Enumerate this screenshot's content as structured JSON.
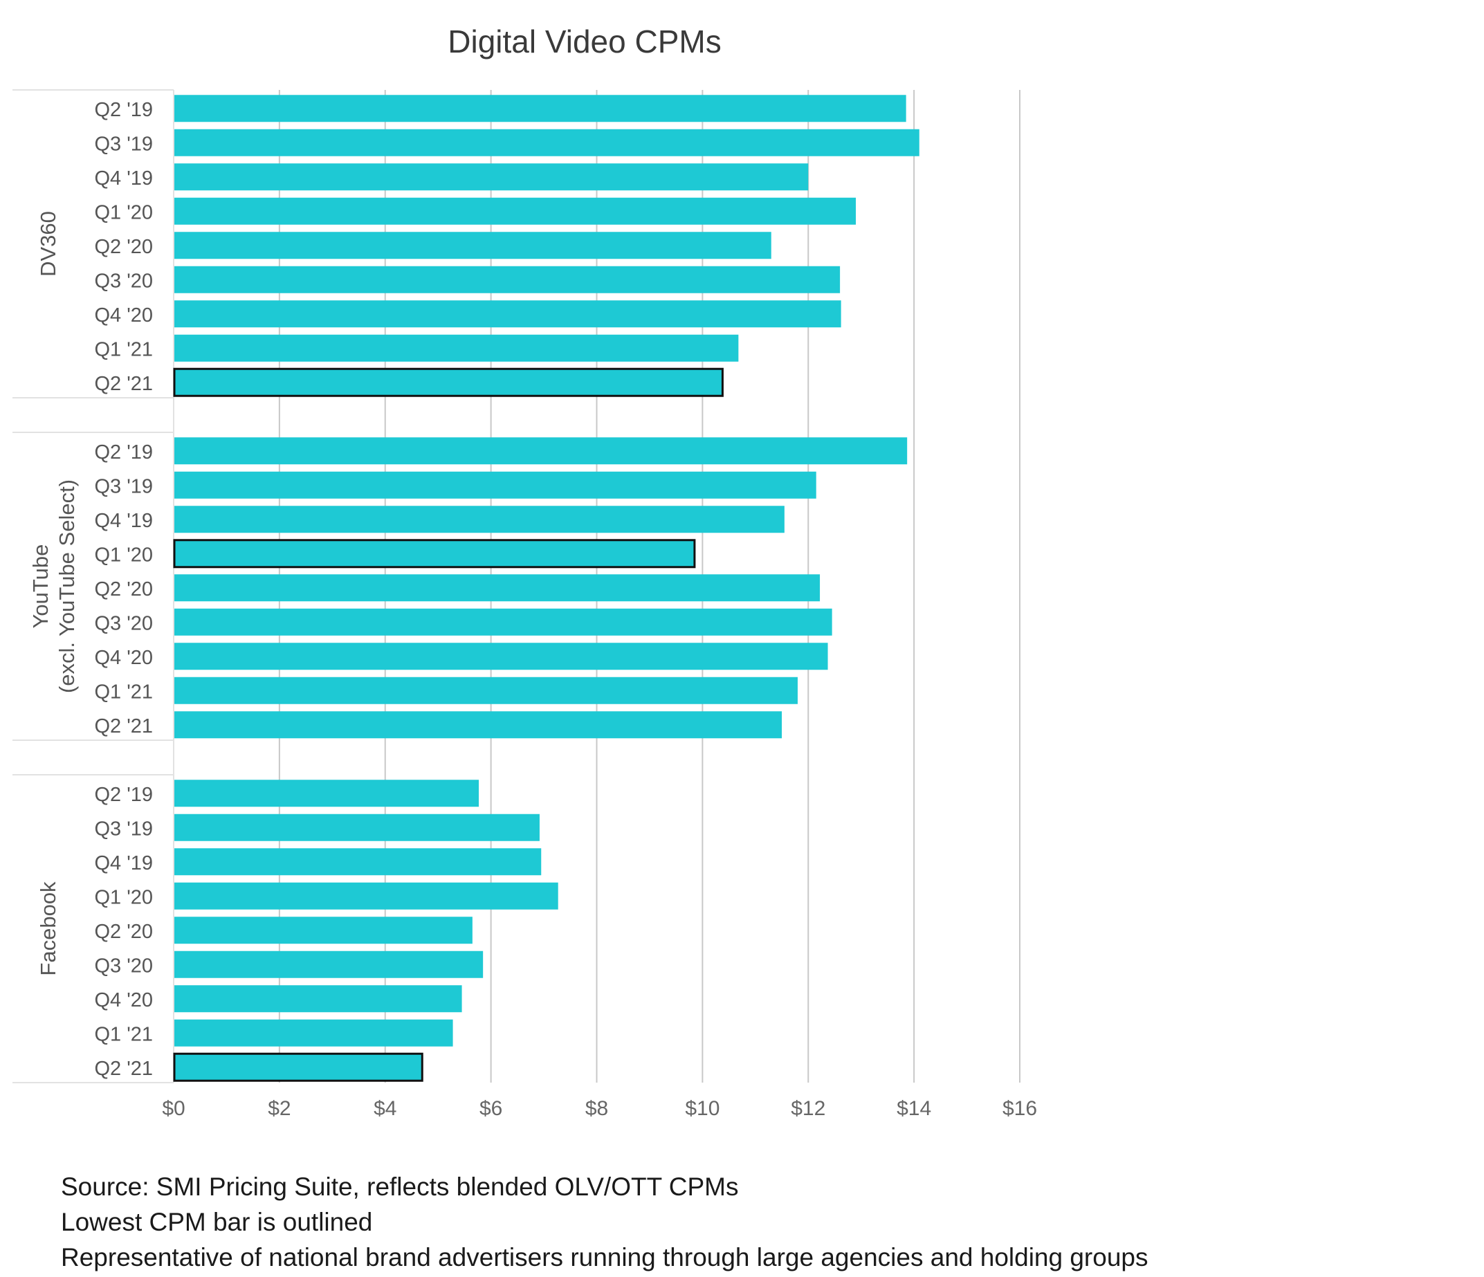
{
  "chart_data": {
    "type": "bar",
    "orientation": "horizontal",
    "title": "Digital Video CPMs",
    "xlabel": "",
    "ylabel": "",
    "xlim": [
      0,
      16
    ],
    "x_ticks": [
      0,
      2,
      4,
      6,
      8,
      10,
      12,
      14,
      16
    ],
    "x_tick_labels": [
      "$0",
      "$2",
      "$4",
      "$6",
      "$8",
      "$10",
      "$12",
      "$14",
      "$16"
    ],
    "grid": "vertical",
    "bar_color": "#1ec9d4",
    "outline_color": "#111111",
    "categories": [
      "Q2 '19",
      "Q3 '19",
      "Q4 '19",
      "Q1 '20",
      "Q2 '20",
      "Q3 '20",
      "Q4 '20",
      "Q1 '21",
      "Q2 '21"
    ],
    "groups": [
      {
        "name_lines": [
          "DV360"
        ],
        "values": [
          13.85,
          14.1,
          12.0,
          12.9,
          11.3,
          12.6,
          12.62,
          10.68,
          10.38
        ],
        "outlined_index": 8
      },
      {
        "name_lines": [
          "YouTube",
          "(excl. YouTube Select)"
        ],
        "values": [
          13.87,
          12.15,
          11.55,
          9.85,
          12.22,
          12.45,
          12.37,
          11.8,
          11.5
        ],
        "outlined_index": 3
      },
      {
        "name_lines": [
          "Facebook"
        ],
        "values": [
          5.77,
          6.92,
          6.95,
          7.27,
          5.65,
          5.85,
          5.45,
          5.28,
          4.7
        ],
        "outlined_index": 8
      }
    ]
  },
  "footnotes": [
    "Source: SMI Pricing Suite, reflects blended OLV/OTT CPMs",
    "Lowest CPM bar is outlined",
    "Representative of national brand advertisers running through large agencies and holding groups"
  ]
}
